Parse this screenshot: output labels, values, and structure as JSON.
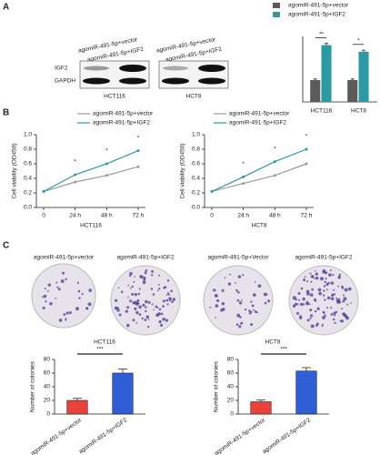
{
  "figure": {
    "panel_letters": [
      "A",
      "B",
      "C"
    ],
    "blot": {
      "lanes_left": [
        "agomiR-491-5p+vector",
        "agomiR-491-5p+IGF2"
      ],
      "lanes_right": [
        "agomiR-491-5p+vector",
        "agomiR-491-5p+IGF2"
      ],
      "rows": [
        "IGF2",
        "GAPDH"
      ],
      "cells": [
        "HCT116",
        "HCT8"
      ]
    },
    "colony": {
      "labels": [
        "agomiR-491-5p+vector",
        "agomiR-491-5p+IGF2",
        "agomiR-491-5p+Vector",
        "agomiR-491-5p+IGF2"
      ],
      "cells": [
        "HCT116",
        "HCT8"
      ]
    }
  },
  "chart_data": [
    {
      "type": "bar",
      "categories": [
        "HCT116",
        "HCT8"
      ],
      "ylim": [
        0,
        3
      ],
      "series": [
        {
          "name": "agomiR-491-5p+vector",
          "color": "#5a5a5a",
          "values": [
            1,
            1
          ],
          "errors": [
            0.05,
            0.05
          ]
        },
        {
          "name": "agomiR-491-5p+IGF2",
          "color": "#2a9aa3",
          "values": [
            2.6,
            2.3
          ],
          "errors": [
            0.08,
            0.07
          ]
        }
      ],
      "annotations": [
        "**",
        "*"
      ]
    },
    {
      "type": "line",
      "categories": [
        "0",
        "24 h",
        "48 h",
        "72 h"
      ],
      "xlabel": "HCT116",
      "ylabel": "Cell viability (OD450)",
      "ylim": [
        0,
        1
      ],
      "yticks": [
        {
          "value": 0,
          "label": "0.0"
        },
        0.2,
        0.4,
        0.6,
        0.8,
        {
          "value": 1,
          "label": "1.0"
        }
      ],
      "series": [
        {
          "name": "agomiR-491-5p+vector",
          "color": "#9a9a9a",
          "values": [
            0.22,
            0.35,
            0.44,
            0.56
          ]
        },
        {
          "name": "agomiR-491-5p+IGF2",
          "color": "#2a9aa3",
          "values": [
            0.22,
            0.45,
            0.6,
            0.78
          ]
        }
      ],
      "annotations": [
        null,
        "*",
        "*",
        "*"
      ]
    },
    {
      "type": "line",
      "categories": [
        "0",
        "24 h",
        "48 h",
        "72 h"
      ],
      "xlabel": "HCT8",
      "ylabel": "Cell viability (OD450)",
      "ylim": [
        0,
        1
      ],
      "yticks": [
        {
          "value": 0,
          "label": "0.0"
        },
        0.2,
        0.4,
        0.6,
        0.8,
        {
          "value": 1,
          "label": "1.0"
        }
      ],
      "series": [
        {
          "name": "agomiR-491-5p+vector",
          "color": "#9a9a9a",
          "values": [
            0.22,
            0.33,
            0.44,
            0.6
          ]
        },
        {
          "name": "agomiR-491-5p+IGF2",
          "color": "#2a9aa3",
          "values": [
            0.22,
            0.42,
            0.63,
            0.8
          ]
        }
      ],
      "annotations": [
        null,
        "*",
        "*",
        "*"
      ]
    },
    {
      "type": "bar",
      "categories": [
        "agomiR-491-5p+vector",
        "agomiR-491-5p+IGF2"
      ],
      "ylabel": "Number of colonies",
      "ylim": [
        0,
        80
      ],
      "yticks": [
        0,
        20,
        40,
        60,
        80
      ],
      "values": [
        20,
        60
      ],
      "errors": [
        3,
        6
      ],
      "colors": [
        "#e8423a",
        "#2f5ed6"
      ],
      "annotation": "***"
    },
    {
      "type": "bar",
      "categories": [
        "agomiR-491-5p+vector",
        "agomiR-491-5p+IGF2"
      ],
      "ylabel": "Number of colonies",
      "ylim": [
        0,
        80
      ],
      "yticks": [
        0,
        20,
        40,
        60,
        80
      ],
      "values": [
        18,
        63
      ],
      "errors": [
        2.5,
        5
      ],
      "colors": [
        "#e8423a",
        "#2f5ed6"
      ],
      "annotation": "***"
    }
  ]
}
